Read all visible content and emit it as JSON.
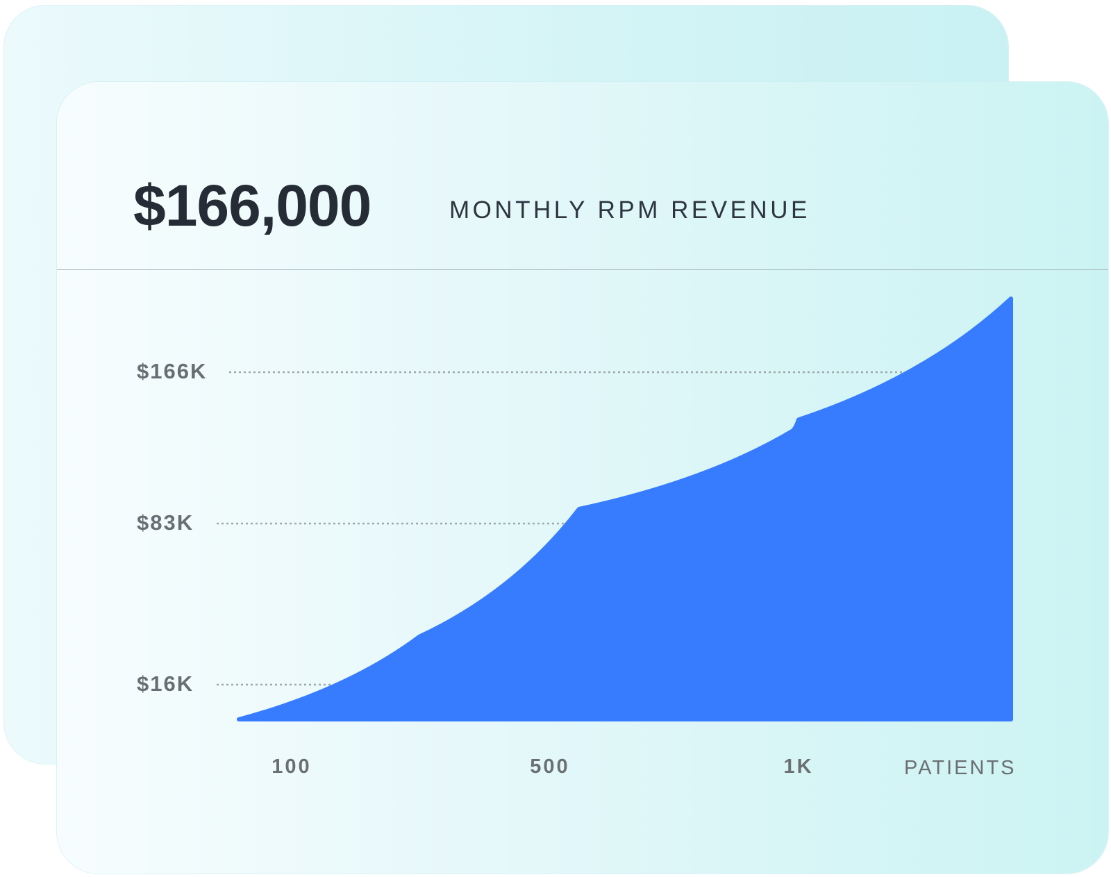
{
  "header": {
    "value": "$166,000",
    "caption": "MONTHLY RPM REVENUE"
  },
  "colors": {
    "area_fill": "#377bfe",
    "gridline": "#9ea7aa",
    "text_dark": "#252c36",
    "text_muted": "#686f74"
  },
  "chart_data": {
    "type": "area",
    "title": "MONTHLY RPM REVENUE",
    "xlabel": "PATIENTS",
    "ylabel": "",
    "x_ticks": [
      {
        "value": 100,
        "label": "100"
      },
      {
        "value": 500,
        "label": "500"
      },
      {
        "value": 1000,
        "label": "1K"
      }
    ],
    "y_ticks": [
      {
        "value": 16000,
        "label": "$16K"
      },
      {
        "value": 83000,
        "label": "$83K"
      },
      {
        "value": 166000,
        "label": "$166K"
      }
    ],
    "y_gridlines": "dotted",
    "series": [
      {
        "x": [
          20,
          300,
          560,
          800,
          1020,
          1350
        ],
        "values": [
          0,
          36000,
          91000,
          134000,
          140000,
          199000
        ]
      }
    ]
  }
}
